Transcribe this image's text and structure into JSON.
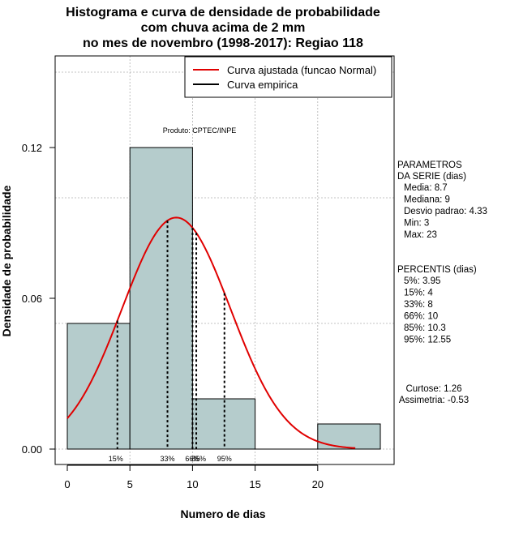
{
  "chart_data": {
    "type": "bar",
    "title_lines": [
      "Histograma e curva de densidade de probabilidade",
      "com chuva acima de 2 mm",
      "no mes de novembro (1998-2017): Regiao 118"
    ],
    "xlabel": "Numero de dias",
    "ylabel": "Densidade de probabilidade",
    "xlim": [
      -1,
      25
    ],
    "ylim": [
      0,
      0.16
    ],
    "x_ticks": [
      0,
      5,
      10,
      15,
      20
    ],
    "y_ticks": [
      0.0,
      0.06,
      0.12
    ],
    "y_tick_labels": [
      "0.00",
      "0.06",
      "0.12"
    ],
    "grid_y": [
      0.0,
      0.05,
      0.1,
      0.15
    ],
    "grid_x": [
      5,
      10,
      15,
      20
    ],
    "bins": [
      {
        "from": 0,
        "to": 5,
        "density": 0.05
      },
      {
        "from": 5,
        "to": 10,
        "density": 0.12
      },
      {
        "from": 10,
        "to": 15,
        "density": 0.02
      },
      {
        "from": 15,
        "to": 20,
        "density": 0.0
      },
      {
        "from": 20,
        "to": 25,
        "density": 0.01
      }
    ],
    "normal_curve": {
      "mean": 8.7,
      "sd": 4.33,
      "x_from": 0,
      "x_to": 23
    },
    "percentile_lines": [
      {
        "label": "15%",
        "x": 4
      },
      {
        "label": "33%",
        "x": 8
      },
      {
        "label": "66%",
        "x": 10
      },
      {
        "label": "85%",
        "x": 10.3
      },
      {
        "label": "95%",
        "x": 12.55
      }
    ],
    "legend": [
      {
        "label": "Curva ajustada (funcao Normal)",
        "color": "#e00000"
      },
      {
        "label": "Curva empirica",
        "color": "#000000"
      }
    ],
    "legend_position": "top-right",
    "product_label": "Produto: CPTEC/INPE",
    "colors": {
      "bar_fill": "#b5cccc",
      "curve": "#e00000",
      "grid": "#b0b0b0"
    },
    "parameters": {
      "heading": [
        "PARAMETROS",
        "DA SERIE (dias)"
      ],
      "items": [
        "Media: 8.7",
        "Mediana: 9",
        "Desvio padrao: 4.33",
        "Min: 3",
        "Max: 23"
      ]
    },
    "percentiles": {
      "heading": "PERCENTIS (dias)",
      "items": [
        "5%: 3.95",
        "15%: 4",
        "33%: 8",
        "66%: 10",
        "85%: 10.3",
        "95%: 12.55"
      ]
    },
    "shape": {
      "items": [
        "Curtose: 1.26",
        "Assimetria: -0.53"
      ]
    }
  }
}
